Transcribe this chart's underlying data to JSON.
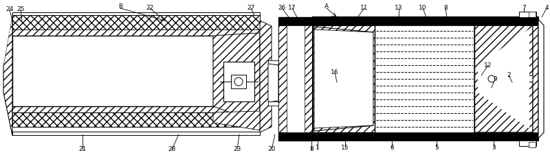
{
  "bg_color": "#ffffff",
  "figsize": [
    8.0,
    2.29
  ],
  "dpi": 100,
  "fs": 6.5
}
